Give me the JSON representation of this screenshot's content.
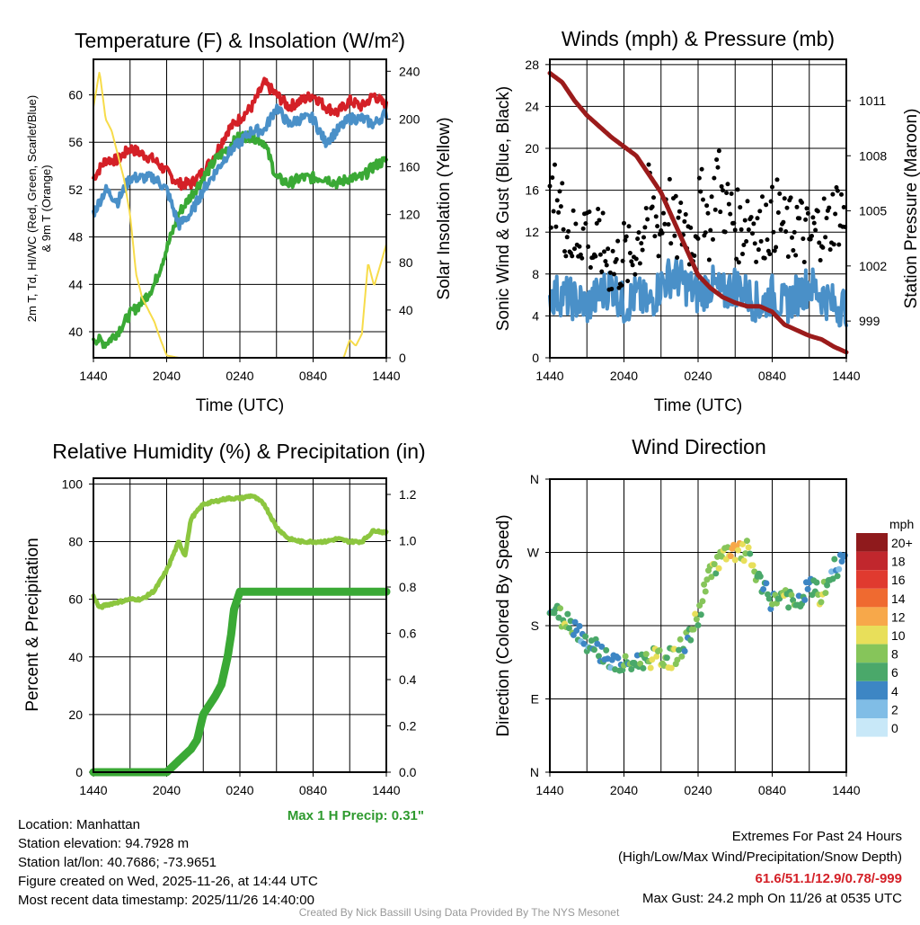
{
  "chart_data": [
    {
      "type": "line",
      "title": "Temperature (F) & Insolation (W/m²)",
      "xlabel": "Time (UTC)",
      "ylabel_line1": "2m T, Td, HI/WC (Red, Green, Scarlet/Blue)",
      "ylabel_line2": "& 9m T (Orange)",
      "ylabel_right": "Solar Insolation (Yellow)",
      "xticks": [
        "1440",
        "2040",
        "0240",
        "0840",
        "1440"
      ],
      "yticks": [
        40,
        44,
        48,
        52,
        56,
        60
      ],
      "yticks_right": [
        0,
        40,
        80,
        120,
        160,
        200,
        240
      ],
      "ylim": [
        37.8,
        63
      ],
      "ylim_right": [
        0,
        250
      ],
      "xlim_hours": [
        0,
        24
      ],
      "series": [
        {
          "name": "2m T",
          "color": "#d42027",
          "hours": [
            0,
            1,
            2,
            3,
            4,
            5,
            6,
            7,
            8,
            9,
            10,
            11,
            12,
            13,
            14,
            15,
            16,
            17,
            18,
            19,
            20,
            21,
            22,
            23,
            24
          ],
          "values": [
            53,
            54.5,
            54.5,
            55.5,
            55,
            54.5,
            53.5,
            52.5,
            52.5,
            53.5,
            55,
            57,
            58,
            59,
            61,
            60,
            59,
            59.5,
            60,
            59,
            58.5,
            59.5,
            59,
            60,
            59
          ]
        },
        {
          "name": "Td",
          "color": "#3aa935",
          "hours": [
            0,
            1,
            2,
            3,
            4,
            5,
            6,
            7,
            8,
            9,
            10,
            11,
            12,
            13,
            14,
            15,
            16,
            17,
            18,
            19,
            20,
            21,
            22,
            23,
            24
          ],
          "values": [
            39.5,
            39,
            40,
            41.5,
            42.5,
            44,
            47,
            50,
            51.5,
            53,
            54.5,
            55.5,
            56.5,
            56.5,
            56,
            53,
            52.5,
            53,
            53,
            53,
            52.5,
            53,
            53,
            54,
            54.5
          ]
        },
        {
          "name": "HI/WC",
          "color": "#4a90c8",
          "hours": [
            0,
            1,
            2,
            3,
            4,
            5,
            6,
            7,
            8,
            9,
            10,
            11,
            12,
            13,
            14,
            15,
            16,
            17,
            18,
            19,
            20,
            21,
            22,
            23,
            24
          ],
          "values": [
            50,
            52,
            51,
            53,
            53,
            53,
            52,
            49,
            50,
            52,
            53.5,
            55,
            56,
            57,
            57,
            59,
            57.5,
            58,
            58,
            56,
            57,
            58,
            58,
            57.5,
            58.5
          ]
        },
        {
          "name": "Solar Insolation",
          "color": "#f7dc4a",
          "axis": "right",
          "hours": [
            0,
            0.5,
            1,
            1.5,
            2,
            2.5,
            3,
            3.5,
            4,
            4.5,
            5,
            5.5,
            6,
            7,
            20,
            20.5,
            21,
            21.5,
            22,
            22.5,
            23,
            24
          ],
          "values": [
            210,
            240,
            200,
            190,
            170,
            150,
            120,
            70,
            50,
            40,
            30,
            15,
            2,
            0,
            0,
            0,
            15,
            10,
            20,
            80,
            60,
            95
          ]
        }
      ]
    },
    {
      "type": "line",
      "title": "Winds (mph) & Pressure (mb)",
      "xlabel": "Time (UTC)",
      "ylabel": "Sonic Wind & Gust (Blue, Black)",
      "ylabel_right": "Station Pressure (Maroon)",
      "xticks": [
        "1440",
        "2040",
        "0240",
        "0840",
        "1440"
      ],
      "yticks": [
        0,
        4,
        8,
        12,
        16,
        20,
        24,
        28
      ],
      "yticks_right": [
        999,
        1002,
        1005,
        1008,
        1011
      ],
      "ylim": [
        0,
        28.5
      ],
      "ylim_right": [
        997,
        1013.25
      ],
      "series": [
        {
          "name": "Sonic Wind",
          "color": "#4a90c8",
          "hours": [
            0,
            1,
            2,
            3,
            4,
            5,
            6,
            7,
            8,
            9,
            10,
            11,
            12,
            13,
            14,
            15,
            16,
            17,
            18,
            19,
            20,
            21,
            22,
            23,
            24
          ],
          "values": [
            6,
            6,
            5.5,
            5,
            6,
            7,
            5,
            6,
            5,
            7,
            8,
            7,
            6,
            7,
            6,
            7,
            6,
            5,
            6,
            5,
            6,
            7,
            6,
            5,
            5
          ]
        },
        {
          "name": "Gust",
          "color": "#000000",
          "style": "dots",
          "hours": [
            0,
            0.5,
            1,
            1.5,
            2,
            2.5,
            3,
            3.5,
            4,
            4.5,
            5,
            5.5,
            6,
            6.5,
            7,
            7.5,
            8,
            8.5,
            9,
            9.5,
            10,
            10.5,
            11,
            11.5,
            12,
            12.5,
            13,
            13.5,
            14,
            14.5,
            15,
            15.5,
            16,
            16.5,
            17,
            17.5,
            18,
            18.5,
            19,
            19.5,
            20,
            20.5,
            21,
            21.5,
            22,
            22.5,
            23,
            23.5,
            24
          ],
          "values": [
            13,
            16,
            14,
            12,
            11,
            12,
            13,
            10,
            11,
            10,
            9,
            9,
            10,
            9,
            11,
            12,
            15,
            13,
            12,
            16,
            12,
            12,
            13,
            11,
            14,
            15,
            12,
            18,
            15,
            14,
            13,
            12,
            14,
            13,
            12,
            13,
            13,
            14,
            12,
            12,
            13,
            12,
            11,
            12,
            13,
            12,
            14,
            14,
            13
          ]
        },
        {
          "name": "Station Pressure",
          "color": "#9b1b1b",
          "axis": "right",
          "hours": [
            0,
            1,
            2,
            3,
            4,
            5,
            6,
            7,
            8,
            9,
            10,
            11,
            12,
            13,
            14,
            15,
            16,
            17,
            18,
            19,
            20,
            21,
            22,
            23,
            24
          ],
          "values": [
            1012.5,
            1012,
            1011,
            1010.2,
            1009.6,
            1009,
            1008.5,
            1008,
            1007,
            1006,
            1004.5,
            1003,
            1001.5,
            1000.8,
            1000.3,
            1000,
            999.8,
            999.8,
            999.5,
            998.8,
            998.5,
            998.2,
            998,
            997.6,
            997.3
          ]
        }
      ]
    },
    {
      "type": "line",
      "title": "Relative Humidity (%) & Precipitation (in)",
      "ylabel": "Percent & Precipitation",
      "xticks": [
        "1440",
        "2040",
        "0240",
        "0840",
        "1440"
      ],
      "yticks": [
        0,
        20,
        40,
        60,
        80,
        100
      ],
      "yticks_right": [
        "0.0",
        "0.2",
        "0.4",
        "0.6",
        "0.8",
        "1.0",
        "1.2"
      ],
      "ylim": [
        0,
        102
      ],
      "ylim_right": [
        0,
        1.27
      ],
      "annotation": "Max 1 H Precip: 0.31\"",
      "series": [
        {
          "name": "Relative Humidity",
          "color": "#8cc63f",
          "hours": [
            0,
            0.5,
            1,
            2,
            3,
            4,
            5,
            6,
            7,
            7.5,
            8,
            9,
            10,
            11,
            12,
            13,
            14,
            15,
            16,
            17,
            18,
            19,
            20,
            21,
            22,
            23,
            24
          ],
          "values": [
            61,
            57,
            58,
            59,
            60,
            60,
            63,
            70,
            80,
            75,
            88,
            93,
            94,
            95,
            95,
            96,
            93,
            85,
            81,
            80,
            80,
            80,
            81,
            80,
            80,
            84,
            83
          ]
        },
        {
          "name": "Precipitation",
          "color": "#3aa935",
          "axis": "right",
          "hours": [
            0,
            6,
            7,
            8,
            8.5,
            9,
            10,
            10.5,
            11,
            11.3,
            11.5,
            12,
            24
          ],
          "values": [
            0,
            0,
            0.05,
            0.1,
            0.14,
            0.25,
            0.33,
            0.38,
            0.5,
            0.6,
            0.7,
            0.78,
            0.78
          ]
        }
      ]
    },
    {
      "type": "scatter",
      "title": "Wind Direction",
      "ylabel": "Direction (Colored By Speed)",
      "xticks": [
        "1440",
        "2040",
        "0240",
        "0840",
        "1440"
      ],
      "yticks": [
        "N",
        "E",
        "S",
        "W",
        "N"
      ],
      "ylim": [
        0,
        360
      ],
      "colorbar": {
        "title": "mph",
        "labels": [
          "20+",
          "18",
          "16",
          "14",
          "12",
          "10",
          "8",
          "6",
          "4",
          "2",
          "0"
        ],
        "colors": [
          "#8f1a1c",
          "#c1272d",
          "#e03a2f",
          "#ef6a30",
          "#f7a84a",
          "#e8df5a",
          "#86c55a",
          "#4aa86a",
          "#3d86c4",
          "#80bde6",
          "#c8e8f8"
        ]
      },
      "points": {
        "hours": [
          0,
          1,
          2,
          3,
          4,
          5,
          6,
          7,
          8,
          9,
          10,
          11,
          12,
          13,
          14,
          15,
          16,
          17,
          18,
          19,
          20,
          21,
          22,
          23,
          24
        ],
        "direction_deg": [
          200,
          190,
          180,
          160,
          150,
          135,
          130,
          135,
          140,
          140,
          140,
          160,
          190,
          250,
          265,
          268,
          272,
          230,
          210,
          220,
          200,
          230,
          215,
          250,
          262
        ],
        "speed_mph": [
          6,
          8,
          5,
          4,
          5,
          4,
          6,
          5,
          8,
          9,
          8,
          6,
          8,
          8,
          9,
          12,
          8,
          6,
          6,
          8,
          6,
          5,
          8,
          4,
          4
        ]
      }
    }
  ],
  "footer": {
    "location": "Location: Manhattan",
    "elevation": "Station elevation: 94.7928 m",
    "latlon": "Station lat/lon: 40.7686; -73.9651",
    "created": "Figure created on Wed, 2025-11-26, at 14:44 UTC",
    "recent": "Most recent data timestamp: 2025/11/26 14:40:00",
    "extremes_title": "Extremes For Past 24 Hours",
    "extremes_sub": "(High/Low/Max Wind/Precipitation/Snow Depth)",
    "extremes_values": "61.6/51.1/12.9/0.78/-999",
    "max_gust": "Max Gust: 24.2 mph On 11/26 at 0535 UTC",
    "credit": "Created By Nick Bassill Using Data Provided By The NYS Mesonet"
  },
  "colors": {
    "extremes": "#d42027",
    "precip_annotation": "#2e9a2e",
    "credit": "#999999"
  }
}
